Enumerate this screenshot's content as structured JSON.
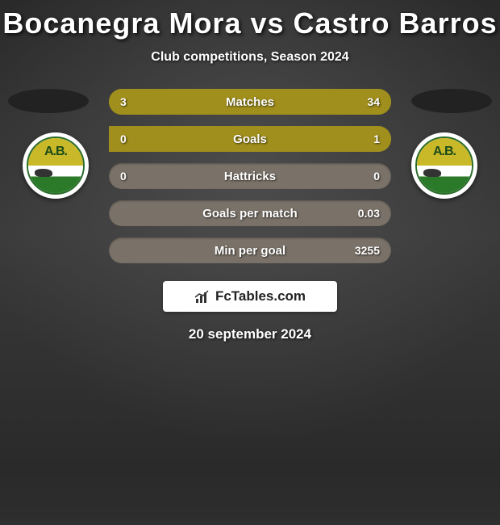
{
  "title": "Bocanegra Mora vs Castro Barros",
  "subtitle": "Club competitions, Season 2024",
  "date": "20 september 2024",
  "branding_text": "FcTables.com",
  "badge_text": "A.B.",
  "colors": {
    "bar_left": "#a08f1c",
    "bar_right": "#a08f1c",
    "bar_neutral": "#7a7268",
    "oval": "#222222",
    "text": "#ffffff"
  },
  "stats": [
    {
      "label": "Matches",
      "left_val": "3",
      "right_val": "34",
      "left_pct": 8,
      "right_pct": 92,
      "neutral": false
    },
    {
      "label": "Goals",
      "left_val": "0",
      "right_val": "1",
      "left_pct": 0,
      "right_pct": 100,
      "neutral": false
    },
    {
      "label": "Hattricks",
      "left_val": "0",
      "right_val": "0",
      "left_pct": 0,
      "right_pct": 0,
      "neutral": true
    },
    {
      "label": "Goals per match",
      "left_val": "",
      "right_val": "0.03",
      "left_pct": 0,
      "right_pct": 0,
      "neutral": true
    },
    {
      "label": "Min per goal",
      "left_val": "",
      "right_val": "3255",
      "left_pct": 0,
      "right_pct": 0,
      "neutral": true
    }
  ]
}
